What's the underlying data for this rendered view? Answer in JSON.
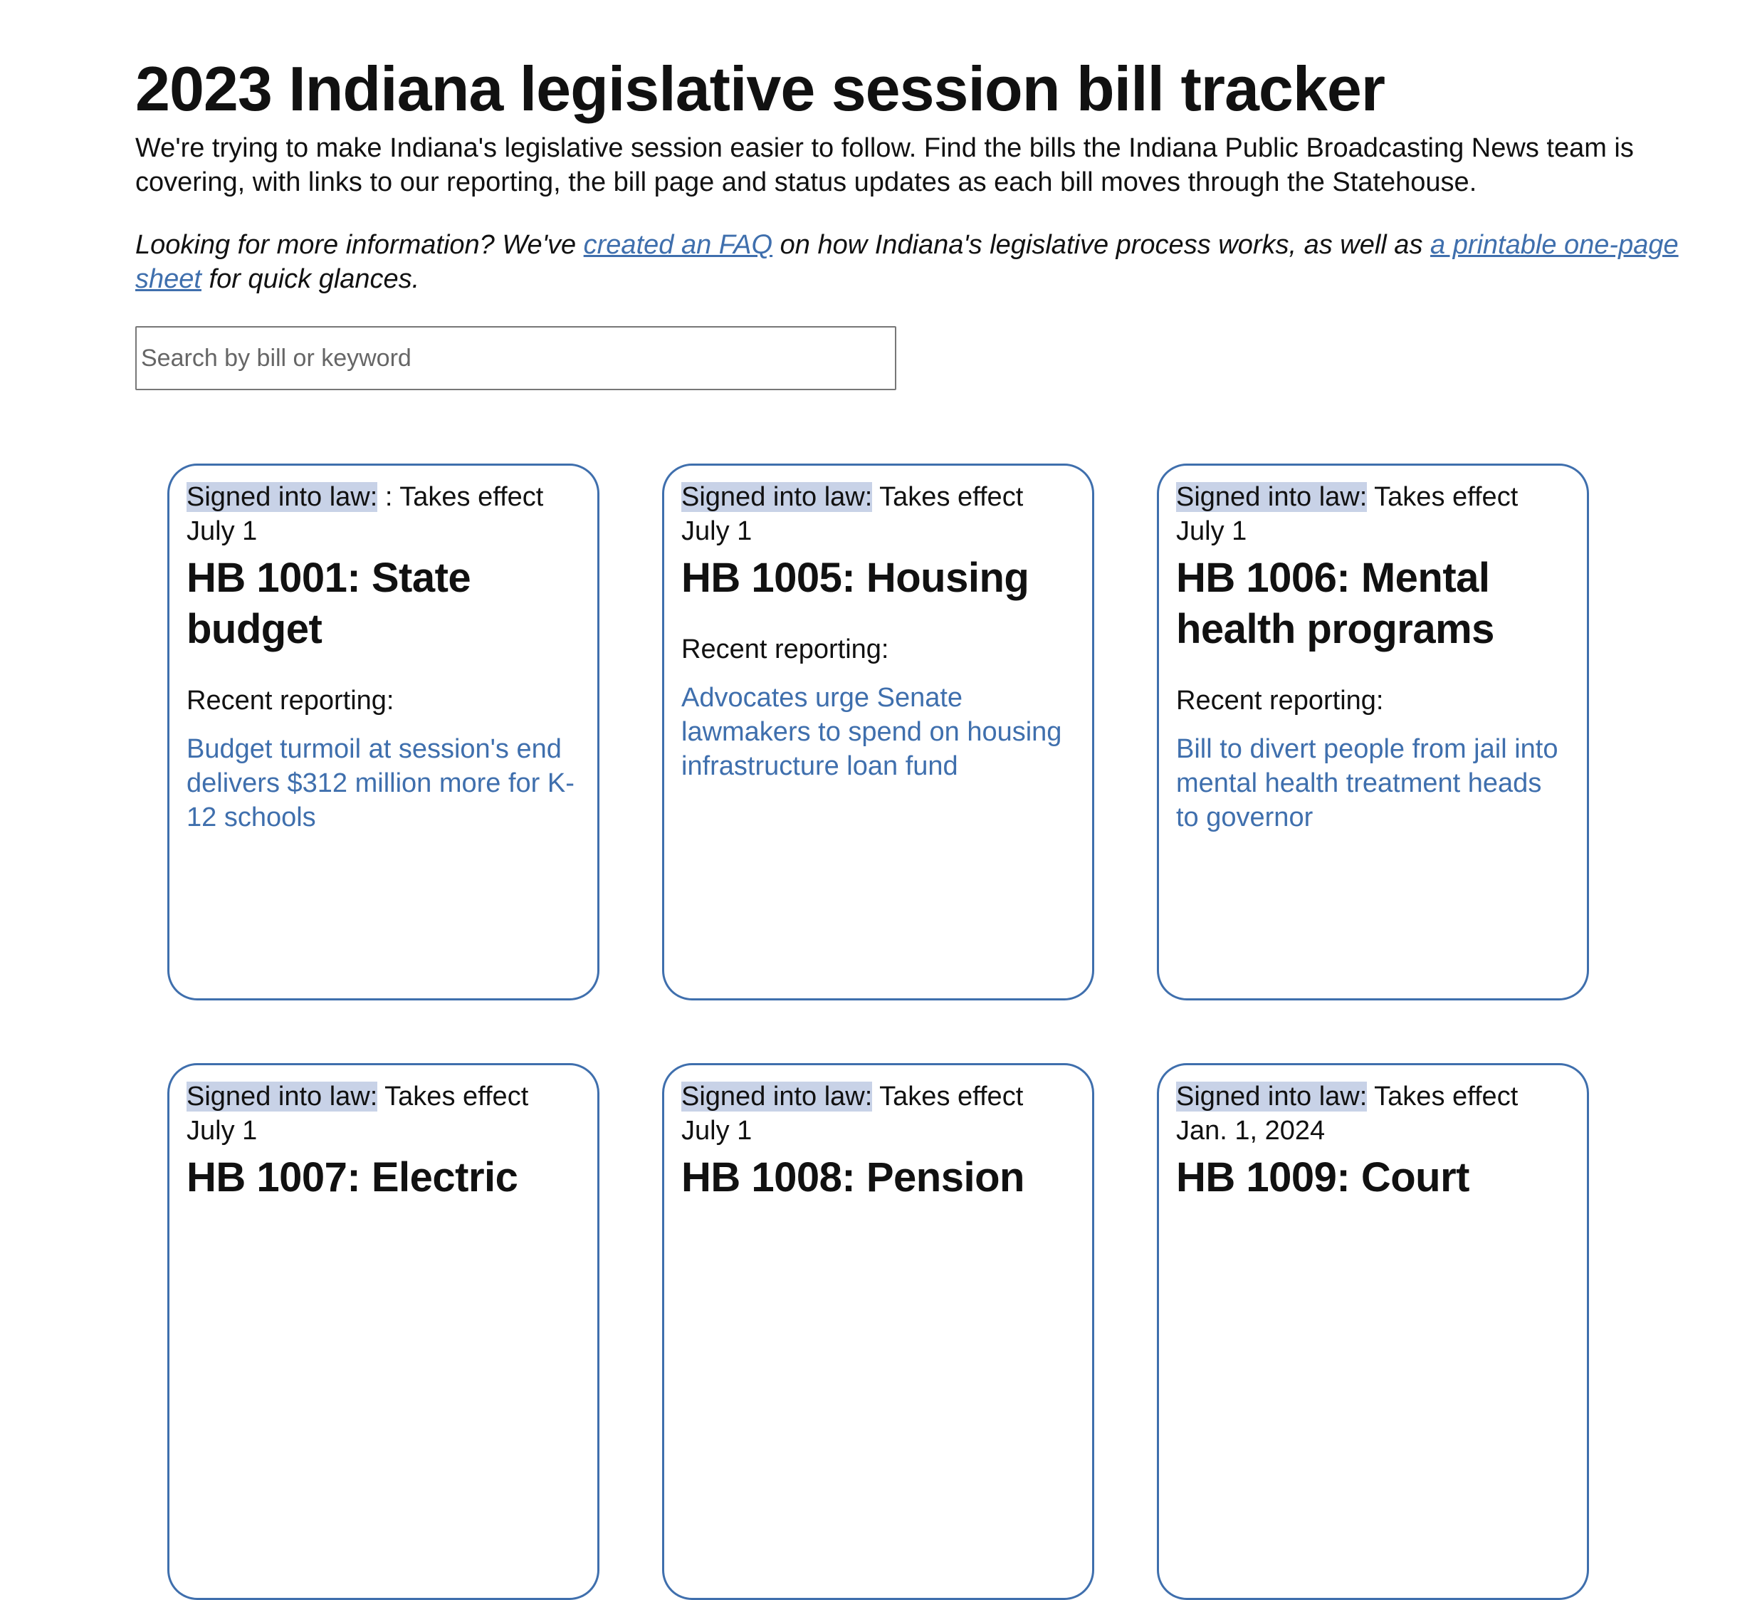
{
  "header": {
    "title": "2023 Indiana legislative session bill tracker",
    "intro": "We're trying to make Indiana's legislative session easier to follow. Find the bills the Indiana Public Broadcasting News team is covering, with links to our reporting, the bill page and status updates as each bill moves through the Statehouse.",
    "info": {
      "text_1": "Looking for more information? We've",
      "link_1": "created an FAQ",
      "text_2": "on how Indiana's legislative process works, as well as",
      "link_2": "a printable one-page sheet",
      "text_3": "for quick glances."
    }
  },
  "search": {
    "placeholder": "Search by bill or keyword"
  },
  "cards": [
    {
      "status": "Signed into law:",
      "note": ": Takes effect July 1",
      "title": "HB 1001: State budget",
      "reporting_label": "Recent reporting:",
      "link": "Budget turmoil at session's end delivers $312 million more for K-12 schools"
    },
    {
      "status": "Signed into law:",
      "note": "Takes effect July 1",
      "title": "HB 1005: Housing",
      "reporting_label": "Recent reporting:",
      "link": "Advocates urge Senate lawmakers to spend on housing infrastructure loan fund"
    },
    {
      "status": "Signed into law:",
      "note": "Takes effect July 1",
      "title": "HB 1006: Mental health programs",
      "reporting_label": "Recent reporting:",
      "link": "Bill to divert people from jail into mental health treatment heads to governor"
    },
    {
      "status": "Signed into law:",
      "note": "Takes effect July 1",
      "title": "HB 1007: Electric"
    },
    {
      "status": "Signed into law:",
      "note": "Takes effect July 1",
      "title": "HB 1008: Pension"
    },
    {
      "status": "Signed into law:",
      "note": "Takes effect Jan. 1, 2024",
      "title": "HB 1009: Court"
    }
  ]
}
